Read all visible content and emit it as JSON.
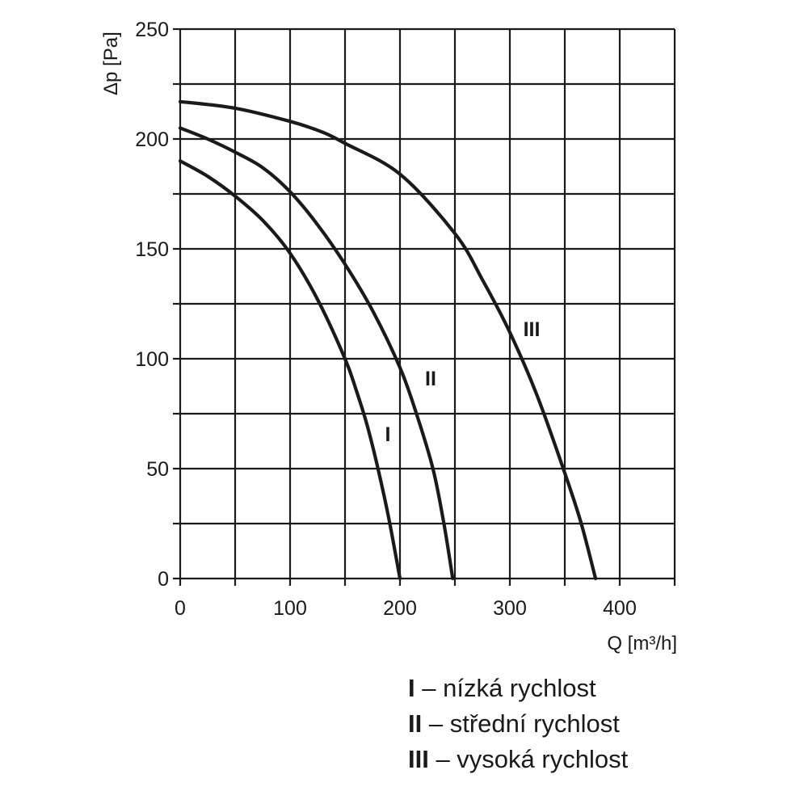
{
  "chart_data": {
    "type": "line",
    "xlabel": "Q [m³/h]",
    "ylabel": "Δp [Pa]",
    "xlim": [
      0,
      450
    ],
    "ylim": [
      0,
      250
    ],
    "x_ticks": [
      0,
      100,
      200,
      300,
      400
    ],
    "y_ticks": [
      0,
      50,
      100,
      150,
      200,
      250
    ],
    "grid": true,
    "series": [
      {
        "name": "I",
        "x": [
          0,
          25,
          50,
          75,
          100,
          125,
          150,
          160,
          170,
          180,
          190,
          200
        ],
        "y": [
          190,
          183,
          174,
          163,
          148,
          127,
          100,
          86,
          70,
          50,
          27,
          0
        ]
      },
      {
        "name": "II",
        "x": [
          0,
          25,
          50,
          75,
          100,
          125,
          150,
          175,
          200,
          215,
          230,
          240,
          248
        ],
        "y": [
          205,
          200,
          194,
          187,
          176,
          161,
          143,
          122,
          96,
          75,
          50,
          25,
          0
        ]
      },
      {
        "name": "III",
        "x": [
          0,
          50,
          100,
          130,
          150,
          200,
          250,
          275,
          300,
          325,
          350,
          365,
          378
        ],
        "y": [
          217,
          214,
          208,
          203,
          198,
          184,
          157,
          136,
          112,
          83,
          48,
          25,
          0
        ]
      }
    ],
    "curve_labels": [
      "I",
      "II",
      "III"
    ],
    "legend": [
      {
        "key": "I",
        "text": " – nízká rychlost"
      },
      {
        "key": "II",
        "text": " – střední rychlost"
      },
      {
        "key": "III",
        "text": " – vysoká rychlost"
      }
    ]
  }
}
